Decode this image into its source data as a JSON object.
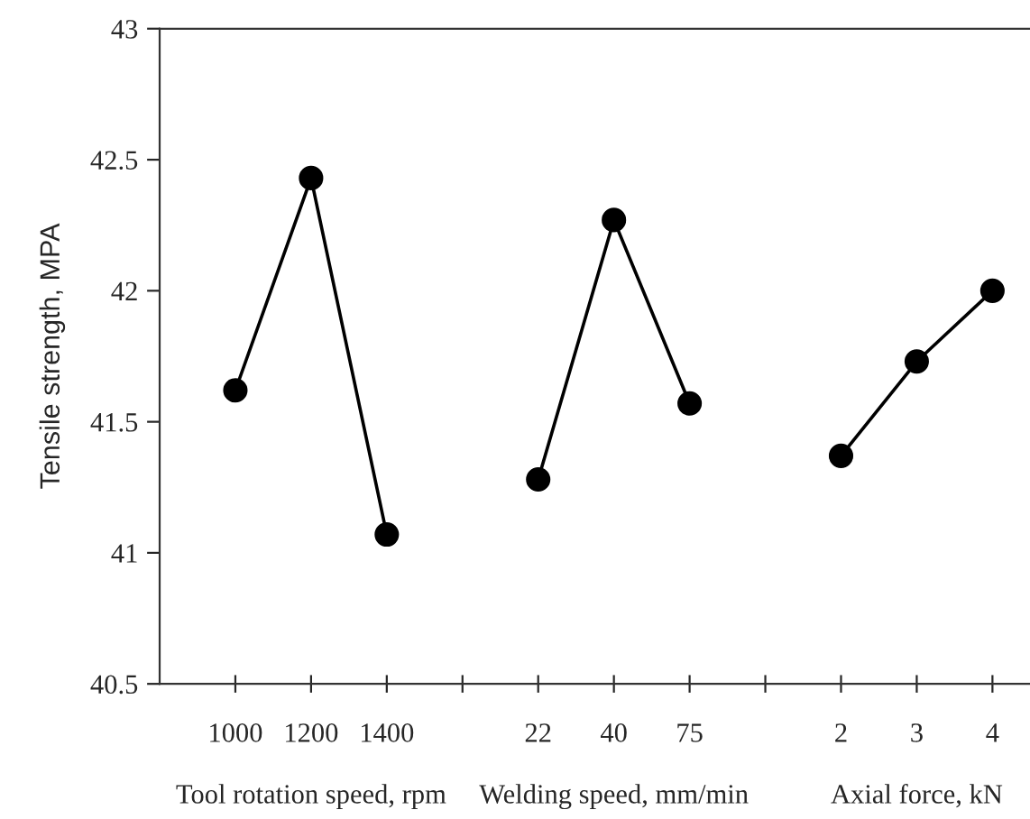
{
  "chart_data": {
    "type": "line",
    "ylabel": "Tensile strength, MPA",
    "categories": [
      "1000",
      "1200",
      "1400",
      null,
      "22",
      "40",
      "75",
      null,
      "2",
      "3",
      "4"
    ],
    "series": [
      {
        "color": "#000000",
        "values": [
          41.62,
          42.43,
          41.07,
          null,
          null,
          null,
          null,
          null,
          null,
          null,
          null
        ]
      },
      {
        "color": "#000000",
        "values": [
          null,
          null,
          null,
          null,
          41.28,
          42.27,
          41.57,
          null,
          null,
          null,
          null
        ]
      },
      {
        "color": "#000000",
        "values": [
          null,
          null,
          null,
          null,
          null,
          null,
          null,
          null,
          41.37,
          41.73,
          42.0
        ]
      }
    ],
    "annotations": [
      "Tool rotation speed, rpm",
      "Welding speed, mm/min",
      "Axial force, kN"
    ],
    "ylim": [
      40.5,
      43
    ],
    "yticks": [
      40.5,
      41,
      41.5,
      42,
      42.5,
      43
    ],
    "marker": "circle",
    "line_style": "solid",
    "grid": false,
    "legend": false
  }
}
